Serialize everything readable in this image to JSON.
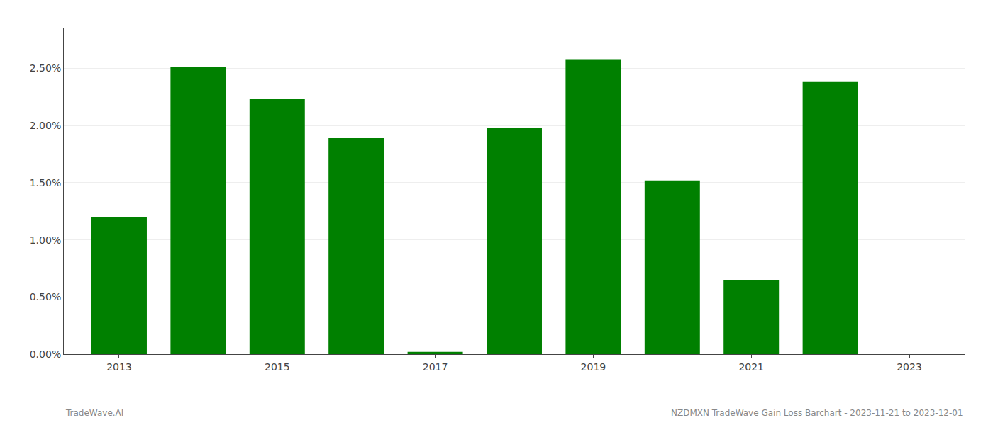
{
  "chart_data": {
    "type": "bar",
    "x": [
      2013,
      2014,
      2015,
      2016,
      2017,
      2018,
      2019,
      2020,
      2021,
      2022
    ],
    "values": [
      0.012,
      0.0251,
      0.0223,
      0.0189,
      0.0002,
      0.0198,
      0.0258,
      0.0152,
      0.0065,
      0.0238
    ],
    "color": "#008000",
    "xlim": [
      2012.3,
      2023.7
    ],
    "xticks": [
      2013,
      2015,
      2017,
      2019,
      2021,
      2023
    ],
    "ylim": [
      0,
      0.0285
    ],
    "yticks": [
      {
        "value": 0.0,
        "label": "0.00%"
      },
      {
        "value": 0.005,
        "label": "0.50%"
      },
      {
        "value": 0.01,
        "label": "1.00%"
      },
      {
        "value": 0.015,
        "label": "1.50%"
      },
      {
        "value": 0.02,
        "label": "2.00%"
      },
      {
        "value": 0.025,
        "label": "2.50%"
      }
    ],
    "grid": true,
    "annotations": [
      "TradeWave.AI",
      "NZDMXN TradeWave Gain Loss Barchart - 2023-11-21 to 2023-12-01"
    ]
  }
}
